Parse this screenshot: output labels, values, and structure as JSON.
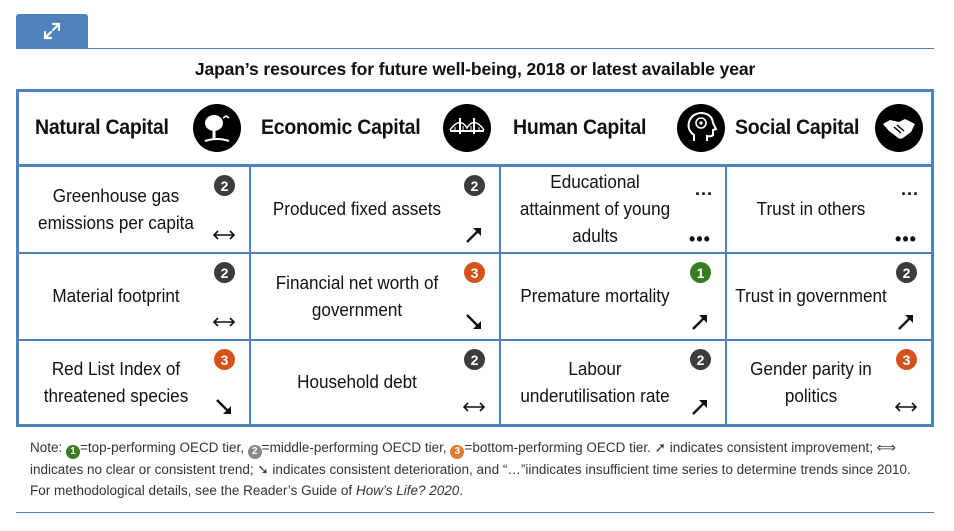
{
  "title": "Japan’s resources for future well-being, 2018 or latest available year",
  "colors": {
    "frame": "#4f81bd",
    "tier1": "#3a7d1f",
    "tier2": "#3c3c3c",
    "tier3": "#d2531b"
  },
  "headers": [
    {
      "label": "Natural Capital",
      "icon": "tree-icon"
    },
    {
      "label": "Economic Capital",
      "icon": "bridge-icon"
    },
    {
      "label": "Human Capital",
      "icon": "head-brain-icon"
    },
    {
      "label": "Social Capital",
      "icon": "handshake-icon"
    }
  ],
  "cells": [
    [
      {
        "label": "Greenhouse gas emissions per capita",
        "tier": "2",
        "trend": "no-clear-trend"
      },
      {
        "label": "Material footprint",
        "tier": "2",
        "trend": "no-clear-trend"
      },
      {
        "label": "Red List Index of threatened species",
        "tier": "3",
        "trend": "deterioration"
      }
    ],
    [
      {
        "label": "Produced fixed assets",
        "tier": "2",
        "trend": "improvement"
      },
      {
        "label": "Financial net worth of government",
        "tier": "3",
        "trend": "deterioration"
      },
      {
        "label": "Household debt",
        "tier": "2",
        "trend": "no-clear-trend"
      }
    ],
    [
      {
        "label": "Educational attainment of young adults",
        "tier": "...",
        "trend": "insufficient"
      },
      {
        "label": "Premature mortality",
        "tier": "1",
        "trend": "improvement"
      },
      {
        "label": "Labour underutilisation rate",
        "tier": "2",
        "trend": "improvement"
      }
    ],
    [
      {
        "label": "Trust in others",
        "tier": "...",
        "trend": "insufficient"
      },
      {
        "label": "Trust in government",
        "tier": "2",
        "trend": "improvement"
      },
      {
        "label": "Gender parity in politics",
        "tier": "3",
        "trend": "no-clear-trend"
      }
    ]
  ],
  "note": {
    "prefix": "Note: ",
    "t1": "1",
    "t1_text": "=top-performing OECD tier, ",
    "t2": "2",
    "t2_text": "=middle-performing OECD tier, ",
    "t3": "3",
    "t3_text": "=bottom-performing OECD tier. ",
    "arrows": "➚ indicates consistent improvement; ⟺ indicates no clear or consistent trend; ➘ indicates consistent deterioration, and “…”iindicates insufficient time series to determine trends since 2010. For methodological details, see the Reader’s Guide of ",
    "book": "How’s Life? 2020",
    "end": "."
  }
}
